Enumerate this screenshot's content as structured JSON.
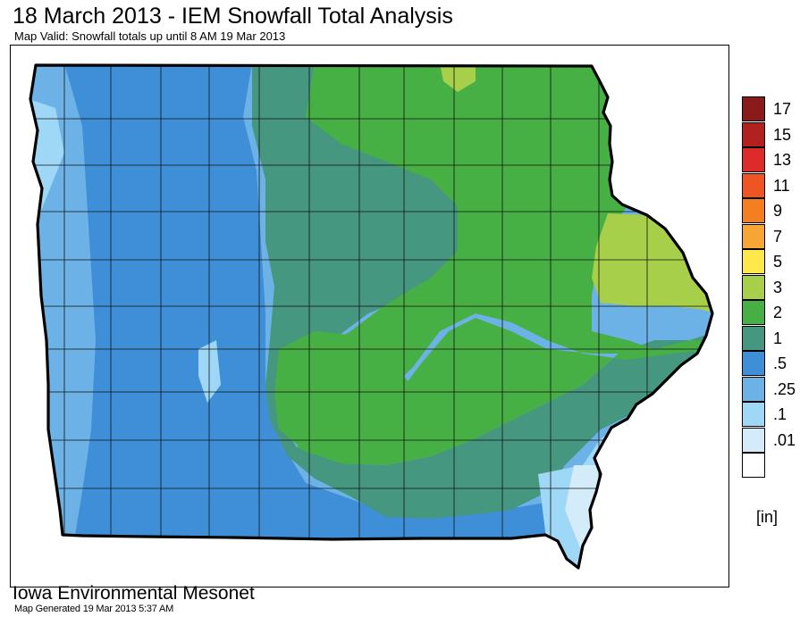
{
  "title": "18 March 2013 - IEM Snowfall Total Analysis",
  "subtitle": "Map Valid: Snowfall totals up until 8 AM 19 Mar 2013",
  "legend": {
    "unit_label": "[in]",
    "bins": [
      {
        "label": "17",
        "color": "#8b1a1a"
      },
      {
        "label": "15",
        "color": "#b32020"
      },
      {
        "label": "13",
        "color": "#dd2a2a"
      },
      {
        "label": "11",
        "color": "#ee5522"
      },
      {
        "label": "9",
        "color": "#f47f20"
      },
      {
        "label": "7",
        "color": "#f7a535"
      },
      {
        "label": "5",
        "color": "#ffe84a"
      },
      {
        "label": "3",
        "color": "#a8cf4a"
      },
      {
        "label": "2",
        "color": "#47b044"
      },
      {
        "label": "1",
        "color": "#45977f"
      },
      {
        "label": ".5",
        "color": "#3e8fd8"
      },
      {
        "label": ".25",
        "color": "#6db2e6"
      },
      {
        "label": ".1",
        "color": "#9fd8f7"
      },
      {
        "label": ".01",
        "color": "#d4ecfa"
      },
      {
        "label": "",
        "color": "#ffffff"
      }
    ]
  },
  "footer": {
    "org": "Iowa Environmental Mesonet",
    "generated": "Map Generated 19 Mar 2013 5:37 AM"
  }
}
